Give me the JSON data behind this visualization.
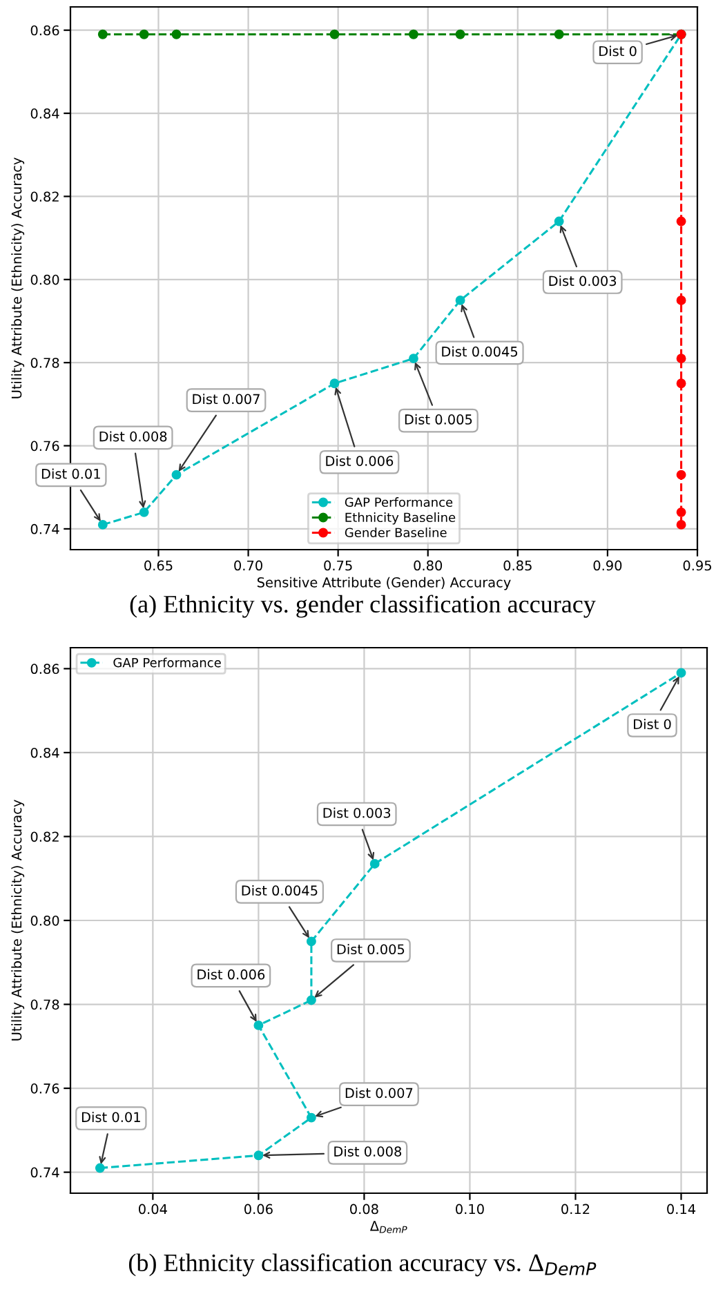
{
  "chart_data": [
    {
      "type": "line",
      "xlabel": "Sensitive Attribute (Gender) Accuracy",
      "ylabel": "Utility Attribute (Ethnicity) Accuracy",
      "xlim": [
        0.601,
        0.95
      ],
      "xticks": [
        0.65,
        {
          "value": 0.7,
          "label": "0.70"
        },
        0.75,
        {
          "value": 0.8,
          "label": "0.80"
        },
        0.85,
        {
          "value": 0.9,
          "label": "0.90"
        },
        0.95
      ],
      "ylim": [
        0.735,
        0.8656
      ],
      "yticks": [
        0.74,
        0.76,
        0.78,
        {
          "value": 0.8,
          "label": "0.80"
        },
        0.82,
        0.84,
        0.86
      ],
      "grid": true,
      "legend": "bottom",
      "marker": "circle",
      "line_style": "dashed",
      "series": [
        {
          "name": "GAP Performance",
          "color": "#00bfbf",
          "x": [
            0.619,
            0.642,
            0.66,
            0.748,
            0.792,
            0.818,
            0.873,
            0.941
          ],
          "values": [
            0.741,
            0.744,
            0.753,
            0.775,
            0.781,
            0.795,
            0.814,
            0.859
          ]
        },
        {
          "name": "Ethnicity Baseline",
          "color": "#008000",
          "x": [
            0.619,
            0.642,
            0.66,
            0.748,
            0.792,
            0.818,
            0.873,
            0.941
          ],
          "values": [
            0.859,
            0.859,
            0.859,
            0.859,
            0.859,
            0.859,
            0.859,
            0.859
          ]
        },
        {
          "name": "Gender Baseline",
          "color": "#ff0000",
          "x": [
            0.941,
            0.941,
            0.941,
            0.941,
            0.941,
            0.941,
            0.941,
            0.941
          ],
          "values": [
            0.741,
            0.744,
            0.753,
            0.775,
            0.781,
            0.795,
            0.814,
            0.859
          ]
        }
      ],
      "annotations": [
        {
          "text": "Dist 0.01",
          "x": 0.619,
          "y": 0.741
        },
        {
          "text": "Dist 0.008",
          "x": 0.642,
          "y": 0.744
        },
        {
          "text": "Dist 0.007",
          "x": 0.66,
          "y": 0.753
        },
        {
          "text": "Dist 0.006",
          "x": 0.748,
          "y": 0.775
        },
        {
          "text": "Dist 0.005",
          "x": 0.792,
          "y": 0.781
        },
        {
          "text": "Dist 0.0045",
          "x": 0.818,
          "y": 0.795
        },
        {
          "text": "Dist 0.003",
          "x": 0.873,
          "y": 0.814
        },
        {
          "text": "Dist 0",
          "x": 0.941,
          "y": 0.859
        },
        "(a) Ethnicity vs. gender classification accuracy"
      ]
    },
    {
      "type": "line",
      "xlabel": "Δ$_{DemP}$",
      "ylabel": "Utility Attribute (Ethnicity) Accuracy",
      "xlim": [
        0.0244,
        0.1449
      ],
      "xticks": [
        0.04,
        0.06,
        0.08,
        {
          "value": 0.1,
          "label": "0.10"
        },
        0.12,
        0.14
      ],
      "ylim": [
        0.735,
        0.865
      ],
      "yticks": [
        0.74,
        0.76,
        0.78,
        {
          "value": 0.8,
          "label": "0.80"
        },
        0.82,
        0.84,
        0.86
      ],
      "grid": true,
      "legend": "top left",
      "marker": "circle",
      "line_style": "dashed",
      "series": [
        {
          "name": "GAP Performance",
          "color": "#00bfbf",
          "x": [
            0.03,
            0.06,
            0.07,
            0.06,
            0.07,
            0.07,
            0.082,
            0.14
          ],
          "values": [
            0.741,
            0.744,
            0.753,
            0.775,
            0.781,
            0.795,
            0.8135,
            0.859
          ]
        }
      ],
      "annotations": [
        {
          "text": "Dist 0.01",
          "x": 0.03,
          "y": 0.741
        },
        {
          "text": "Dist 0.008",
          "x": 0.06,
          "y": 0.744
        },
        {
          "text": "Dist 0.007",
          "x": 0.07,
          "y": 0.753
        },
        {
          "text": "Dist 0.006",
          "x": 0.06,
          "y": 0.775
        },
        {
          "text": "Dist 0.005",
          "x": 0.07,
          "y": 0.781
        },
        {
          "text": "Dist 0.0045",
          "x": 0.07,
          "y": 0.795
        },
        {
          "text": "Dist 0.003",
          "x": 0.082,
          "y": 0.8135
        },
        {
          "text": "Dist 0",
          "x": 0.14,
          "y": 0.859
        },
        "(b) Ethnicity classification accuracy vs. Δ$_{DemP}$"
      ]
    }
  ]
}
